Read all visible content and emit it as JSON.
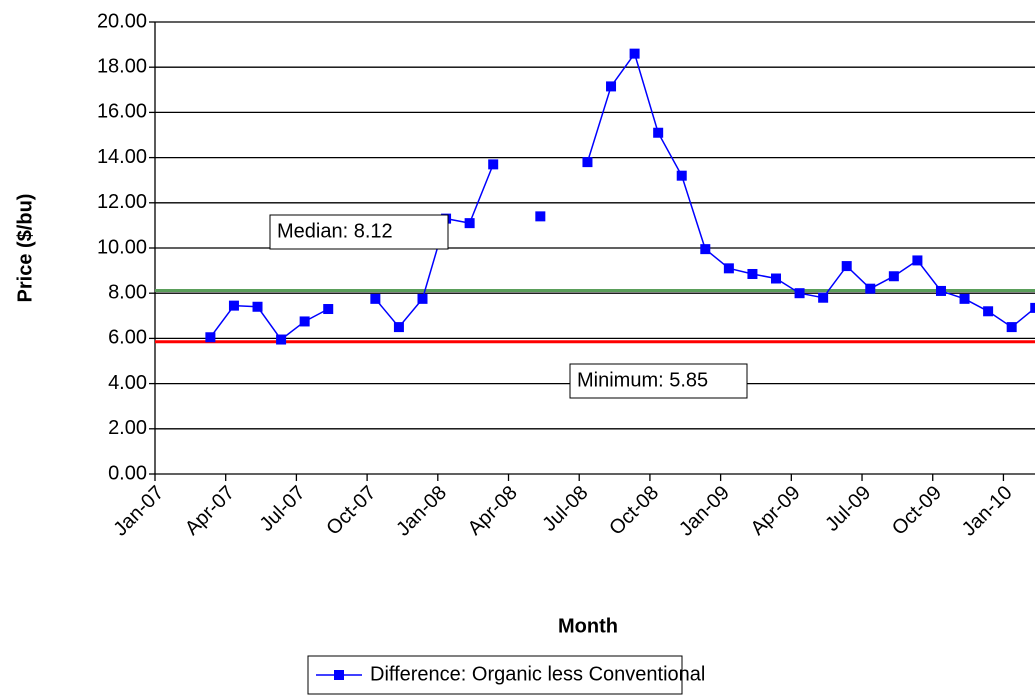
{
  "chart_data": {
    "type": "line",
    "x_label": "Month",
    "y_label": "Price ($/bu)",
    "x": [
      "Mar-07",
      "Apr-07",
      "May-07",
      "Jun-07",
      "Jul-07",
      "Aug-07",
      "Sep-07",
      "Oct-07",
      "Nov-07",
      "Dec-07",
      "Jan-08",
      "Feb-08",
      "Mar-08",
      "Apr-08",
      "May-08",
      "Jun-08",
      "Jul-08",
      "Aug-08",
      "Sep-08",
      "Oct-08",
      "Nov-08",
      "Dec-08",
      "Jan-09",
      "Feb-09",
      "Mar-09",
      "Apr-09",
      "May-09",
      "Jun-09",
      "Jul-09",
      "Aug-09",
      "Sep-09",
      "Oct-09",
      "Nov-09",
      "Dec-09",
      "Jan-10",
      "Feb-10"
    ],
    "series": [
      {
        "name": "Difference: Organic less Conventional",
        "color": "#0000ff",
        "values": [
          6.05,
          7.45,
          7.4,
          5.95,
          6.75,
          7.3,
          null,
          7.75,
          6.5,
          7.75,
          11.3,
          11.1,
          13.7,
          null,
          11.4,
          null,
          13.8,
          17.15,
          18.6,
          15.1,
          13.2,
          9.95,
          9.1,
          8.85,
          8.65,
          8.0,
          7.8,
          9.2,
          8.2,
          8.75,
          9.45,
          8.1,
          7.75,
          7.2,
          6.5,
          7.35
        ]
      }
    ],
    "reference_lines": [
      {
        "label": "Median: 8.12",
        "value": 8.12,
        "color": "#5a9e5a"
      },
      {
        "label": "Minimum: 5.85",
        "value": 5.85,
        "color": "#ff0000"
      }
    ],
    "xlim": [
      "Jan-07",
      "Feb-10"
    ],
    "xticks": [
      "Jan-07",
      "Apr-07",
      "Jul-07",
      "Oct-07",
      "Jan-08",
      "Apr-08",
      "Jul-08",
      "Oct-08",
      "Jan-09",
      "Apr-09",
      "Jul-09",
      "Oct-09",
      "Jan-10"
    ],
    "ylim": [
      0,
      20
    ],
    "yticks": [
      {
        "value": 0,
        "label": "0.00"
      },
      {
        "value": 2,
        "label": "2.00"
      },
      {
        "value": 4,
        "label": "4.00"
      },
      {
        "value": 6,
        "label": "6.00"
      },
      {
        "value": 8,
        "label": "8.00"
      },
      {
        "value": 10,
        "label": "10.00"
      },
      {
        "value": 12,
        "label": "12.00"
      },
      {
        "value": 14,
        "label": "14.00"
      },
      {
        "value": 16,
        "label": "16.00"
      },
      {
        "value": 18,
        "label": "18.00"
      },
      {
        "value": 20,
        "label": "20.00"
      }
    ],
    "grid": true
  }
}
